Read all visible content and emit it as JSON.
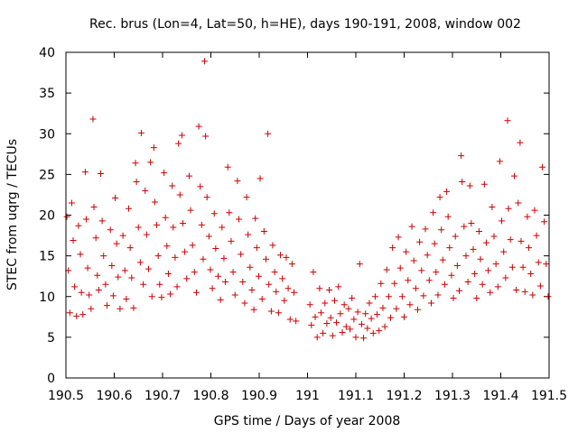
{
  "chart_data": {
    "type": "scatter",
    "title": "Rec. brus (Lon=4, Lat=50, h=HE), days 190-191, 2008, window 002",
    "xlabel": "GPS time / Days of year 2008",
    "ylabel": "STEC from uqrg / TECUs",
    "xlim": [
      190.5,
      191.5
    ],
    "ylim": [
      0,
      40
    ],
    "xticks": [
      "190.5",
      "190.6",
      "190.7",
      "190.8",
      "190.9",
      "191",
      "191.1",
      "191.2",
      "191.3",
      "191.4",
      "191.5"
    ],
    "yticks": [
      "0",
      "5",
      "10",
      "15",
      "20",
      "25",
      "30",
      "35",
      "40"
    ],
    "marker": "plus",
    "color": "#cc0000",
    "grid": false,
    "points": [
      [
        190.502,
        19.8
      ],
      [
        190.505,
        13.2
      ],
      [
        190.508,
        8.0
      ],
      [
        190.512,
        21.5
      ],
      [
        190.515,
        16.9
      ],
      [
        190.518,
        11.2
      ],
      [
        190.522,
        7.6
      ],
      [
        190.526,
        18.7
      ],
      [
        190.53,
        15.2
      ],
      [
        190.532,
        10.5
      ],
      [
        190.535,
        7.8
      ],
      [
        190.54,
        25.3
      ],
      [
        190.542,
        19.5
      ],
      [
        190.545,
        13.5
      ],
      [
        190.548,
        10.2
      ],
      [
        190.552,
        8.5
      ],
      [
        190.556,
        31.8
      ],
      [
        190.558,
        21.0
      ],
      [
        190.562,
        17.2
      ],
      [
        190.565,
        12.6
      ],
      [
        190.568,
        10.8
      ],
      [
        190.572,
        25.1
      ],
      [
        190.575,
        19.3
      ],
      [
        190.578,
        15.0
      ],
      [
        190.582,
        11.5
      ],
      [
        190.585,
        8.9
      ],
      [
        190.592,
        18.2
      ],
      [
        190.595,
        13.8
      ],
      [
        190.598,
        10.1
      ],
      [
        190.602,
        22.1
      ],
      [
        190.605,
        16.5
      ],
      [
        190.608,
        12.4
      ],
      [
        190.612,
        8.5
      ],
      [
        190.618,
        17.5
      ],
      [
        190.622,
        13.2
      ],
      [
        190.625,
        9.7
      ],
      [
        190.63,
        20.8
      ],
      [
        190.633,
        16.0
      ],
      [
        190.636,
        12.3
      ],
      [
        190.64,
        8.6
      ],
      [
        190.644,
        26.4
      ],
      [
        190.646,
        24.1
      ],
      [
        190.65,
        18.5
      ],
      [
        190.654,
        14.2
      ],
      [
        190.656,
        30.1
      ],
      [
        190.66,
        11.5
      ],
      [
        190.664,
        23.0
      ],
      [
        190.667,
        17.6
      ],
      [
        190.671,
        13.4
      ],
      [
        190.675,
        26.5
      ],
      [
        190.678,
        10.0
      ],
      [
        190.682,
        28.3
      ],
      [
        190.684,
        21.6
      ],
      [
        190.688,
        18.8
      ],
      [
        190.691,
        15.0
      ],
      [
        190.694,
        11.5
      ],
      [
        190.698,
        9.9
      ],
      [
        190.703,
        25.2
      ],
      [
        190.706,
        19.7
      ],
      [
        190.709,
        16.2
      ],
      [
        190.712,
        12.8
      ],
      [
        190.716,
        10.3
      ],
      [
        190.72,
        23.6
      ],
      [
        190.722,
        18.5
      ],
      [
        190.726,
        14.8
      ],
      [
        190.73,
        11.2
      ],
      [
        190.733,
        28.8
      ],
      [
        190.736,
        22.5
      ],
      [
        190.74,
        29.8
      ],
      [
        190.742,
        19.0
      ],
      [
        190.746,
        15.5
      ],
      [
        190.75,
        12.2
      ],
      [
        190.755,
        24.8
      ],
      [
        190.758,
        20.6
      ],
      [
        190.762,
        16.3
      ],
      [
        190.766,
        13.0
      ],
      [
        190.77,
        10.5
      ],
      [
        190.775,
        30.9
      ],
      [
        190.778,
        23.5
      ],
      [
        190.781,
        18.8
      ],
      [
        190.784,
        14.6
      ],
      [
        190.787,
        38.9
      ],
      [
        190.789,
        29.7
      ],
      [
        190.792,
        22.2
      ],
      [
        190.796,
        17.4
      ],
      [
        190.799,
        13.3
      ],
      [
        190.803,
        11.0
      ],
      [
        190.807,
        20.2
      ],
      [
        190.81,
        15.9
      ],
      [
        190.815,
        12.5
      ],
      [
        190.82,
        9.6
      ],
      [
        190.823,
        18.5
      ],
      [
        190.827,
        14.7
      ],
      [
        190.83,
        11.8
      ],
      [
        190.835,
        25.9
      ],
      [
        190.838,
        20.3
      ],
      [
        190.842,
        16.8
      ],
      [
        190.846,
        13.0
      ],
      [
        190.85,
        10.2
      ],
      [
        190.855,
        24.2
      ],
      [
        190.858,
        19.5
      ],
      [
        190.862,
        15.2
      ],
      [
        190.866,
        11.8
      ],
      [
        190.87,
        9.2
      ],
      [
        190.874,
        22.2
      ],
      [
        190.877,
        17.6
      ],
      [
        190.881,
        13.6
      ],
      [
        190.885,
        10.8
      ],
      [
        190.889,
        8.4
      ],
      [
        190.892,
        19.6
      ],
      [
        190.895,
        16.0
      ],
      [
        190.899,
        12.5
      ],
      [
        190.902,
        24.5
      ],
      [
        190.906,
        9.7
      ],
      [
        190.91,
        18.0
      ],
      [
        190.914,
        14.6
      ],
      [
        190.918,
        30.0
      ],
      [
        190.92,
        11.5
      ],
      [
        190.925,
        8.2
      ],
      [
        190.928,
        16.3
      ],
      [
        190.932,
        13.0
      ],
      [
        190.935,
        10.6
      ],
      [
        190.94,
        8.0
      ],
      [
        190.944,
        15.1
      ],
      [
        190.948,
        12.2
      ],
      [
        190.952,
        9.5
      ],
      [
        190.956,
        14.8
      ],
      [
        190.96,
        11.0
      ],
      [
        190.964,
        7.2
      ],
      [
        190.968,
        14.0
      ],
      [
        190.972,
        10.5
      ],
      [
        190.976,
        7.0
      ],
      [
        191.005,
        9.0
      ],
      [
        191.008,
        6.5
      ],
      [
        191.012,
        13.0
      ],
      [
        191.016,
        7.5
      ],
      [
        191.02,
        5.0
      ],
      [
        191.025,
        11.0
      ],
      [
        191.028,
        8.0
      ],
      [
        191.032,
        5.5
      ],
      [
        191.036,
        9.2
      ],
      [
        191.04,
        6.7
      ],
      [
        191.045,
        10.8
      ],
      [
        191.048,
        7.4
      ],
      [
        191.052,
        5.2
      ],
      [
        191.056,
        9.5
      ],
      [
        191.06,
        6.8
      ],
      [
        191.064,
        11.2
      ],
      [
        191.068,
        7.9
      ],
      [
        191.072,
        5.6
      ],
      [
        191.076,
        9.0
      ],
      [
        191.08,
        6.3
      ],
      [
        191.085,
        8.5
      ],
      [
        191.088,
        6.0
      ],
      [
        191.092,
        9.8
      ],
      [
        191.096,
        7.2
      ],
      [
        191.1,
        5.0
      ],
      [
        191.104,
        8.1
      ],
      [
        191.108,
        14.0
      ],
      [
        191.112,
        6.6
      ],
      [
        191.116,
        4.9
      ],
      [
        191.12,
        7.9
      ],
      [
        191.124,
        6.1
      ],
      [
        191.128,
        9.2
      ],
      [
        191.132,
        7.3
      ],
      [
        191.136,
        5.5
      ],
      [
        191.14,
        10.0
      ],
      [
        191.144,
        7.8
      ],
      [
        191.148,
        5.8
      ],
      [
        191.152,
        11.6
      ],
      [
        191.156,
        8.6
      ],
      [
        191.16,
        6.3
      ],
      [
        191.164,
        13.3
      ],
      [
        191.168,
        10.0
      ],
      [
        191.172,
        7.4
      ],
      [
        191.176,
        16.0
      ],
      [
        191.18,
        11.6
      ],
      [
        191.184,
        8.5
      ],
      [
        191.188,
        17.3
      ],
      [
        191.192,
        13.5
      ],
      [
        191.196,
        10.0
      ],
      [
        191.2,
        7.5
      ],
      [
        191.204,
        15.5
      ],
      [
        191.208,
        12.0
      ],
      [
        191.212,
        9.0
      ],
      [
        191.216,
        18.6
      ],
      [
        191.22,
        14.4
      ],
      [
        191.224,
        11.0
      ],
      [
        191.228,
        8.4
      ],
      [
        191.232,
        16.7
      ],
      [
        191.236,
        13.2
      ],
      [
        191.24,
        10.1
      ],
      [
        191.244,
        18.3
      ],
      [
        191.248,
        15.1
      ],
      [
        191.252,
        12.0
      ],
      [
        191.256,
        9.2
      ],
      [
        191.26,
        20.3
      ],
      [
        191.263,
        16.5
      ],
      [
        191.266,
        13.0
      ],
      [
        191.27,
        10.2
      ],
      [
        191.274,
        22.2
      ],
      [
        191.277,
        18.2
      ],
      [
        191.28,
        14.5
      ],
      [
        191.284,
        11.5
      ],
      [
        191.288,
        22.9
      ],
      [
        191.291,
        19.8
      ],
      [
        191.294,
        16.0
      ],
      [
        191.298,
        12.6
      ],
      [
        191.302,
        9.8
      ],
      [
        191.306,
        17.4
      ],
      [
        191.31,
        13.8
      ],
      [
        191.314,
        10.7
      ],
      [
        191.318,
        27.3
      ],
      [
        191.32,
        24.1
      ],
      [
        191.324,
        18.6
      ],
      [
        191.328,
        15.0
      ],
      [
        191.332,
        11.8
      ],
      [
        191.336,
        23.6
      ],
      [
        191.339,
        19.0
      ],
      [
        191.343,
        15.8
      ],
      [
        191.346,
        12.8
      ],
      [
        191.35,
        9.8
      ],
      [
        191.355,
        18.0
      ],
      [
        191.358,
        14.6
      ],
      [
        191.362,
        11.5
      ],
      [
        191.366,
        23.8
      ],
      [
        191.37,
        16.6
      ],
      [
        191.374,
        13.2
      ],
      [
        191.378,
        10.5
      ],
      [
        191.382,
        21.0
      ],
      [
        191.386,
        17.4
      ],
      [
        191.39,
        14.0
      ],
      [
        191.394,
        11.2
      ],
      [
        191.398,
        26.6
      ],
      [
        191.402,
        19.3
      ],
      [
        191.406,
        15.5
      ],
      [
        191.41,
        12.3
      ],
      [
        191.414,
        31.6
      ],
      [
        191.416,
        20.8
      ],
      [
        191.42,
        17.0
      ],
      [
        191.424,
        13.6
      ],
      [
        191.428,
        24.8
      ],
      [
        191.432,
        10.8
      ],
      [
        191.436,
        21.5
      ],
      [
        191.44,
        28.9
      ],
      [
        191.442,
        16.8
      ],
      [
        191.446,
        13.6
      ],
      [
        191.45,
        10.6
      ],
      [
        191.455,
        19.8
      ],
      [
        191.458,
        16.0
      ],
      [
        191.462,
        12.8
      ],
      [
        191.466,
        10.2
      ],
      [
        191.47,
        20.6
      ],
      [
        191.474,
        17.5
      ],
      [
        191.478,
        14.2
      ],
      [
        191.482,
        11.3
      ],
      [
        191.486,
        25.9
      ],
      [
        191.49,
        19.2
      ],
      [
        191.494,
        14.0
      ],
      [
        191.498,
        10.0
      ]
    ]
  }
}
